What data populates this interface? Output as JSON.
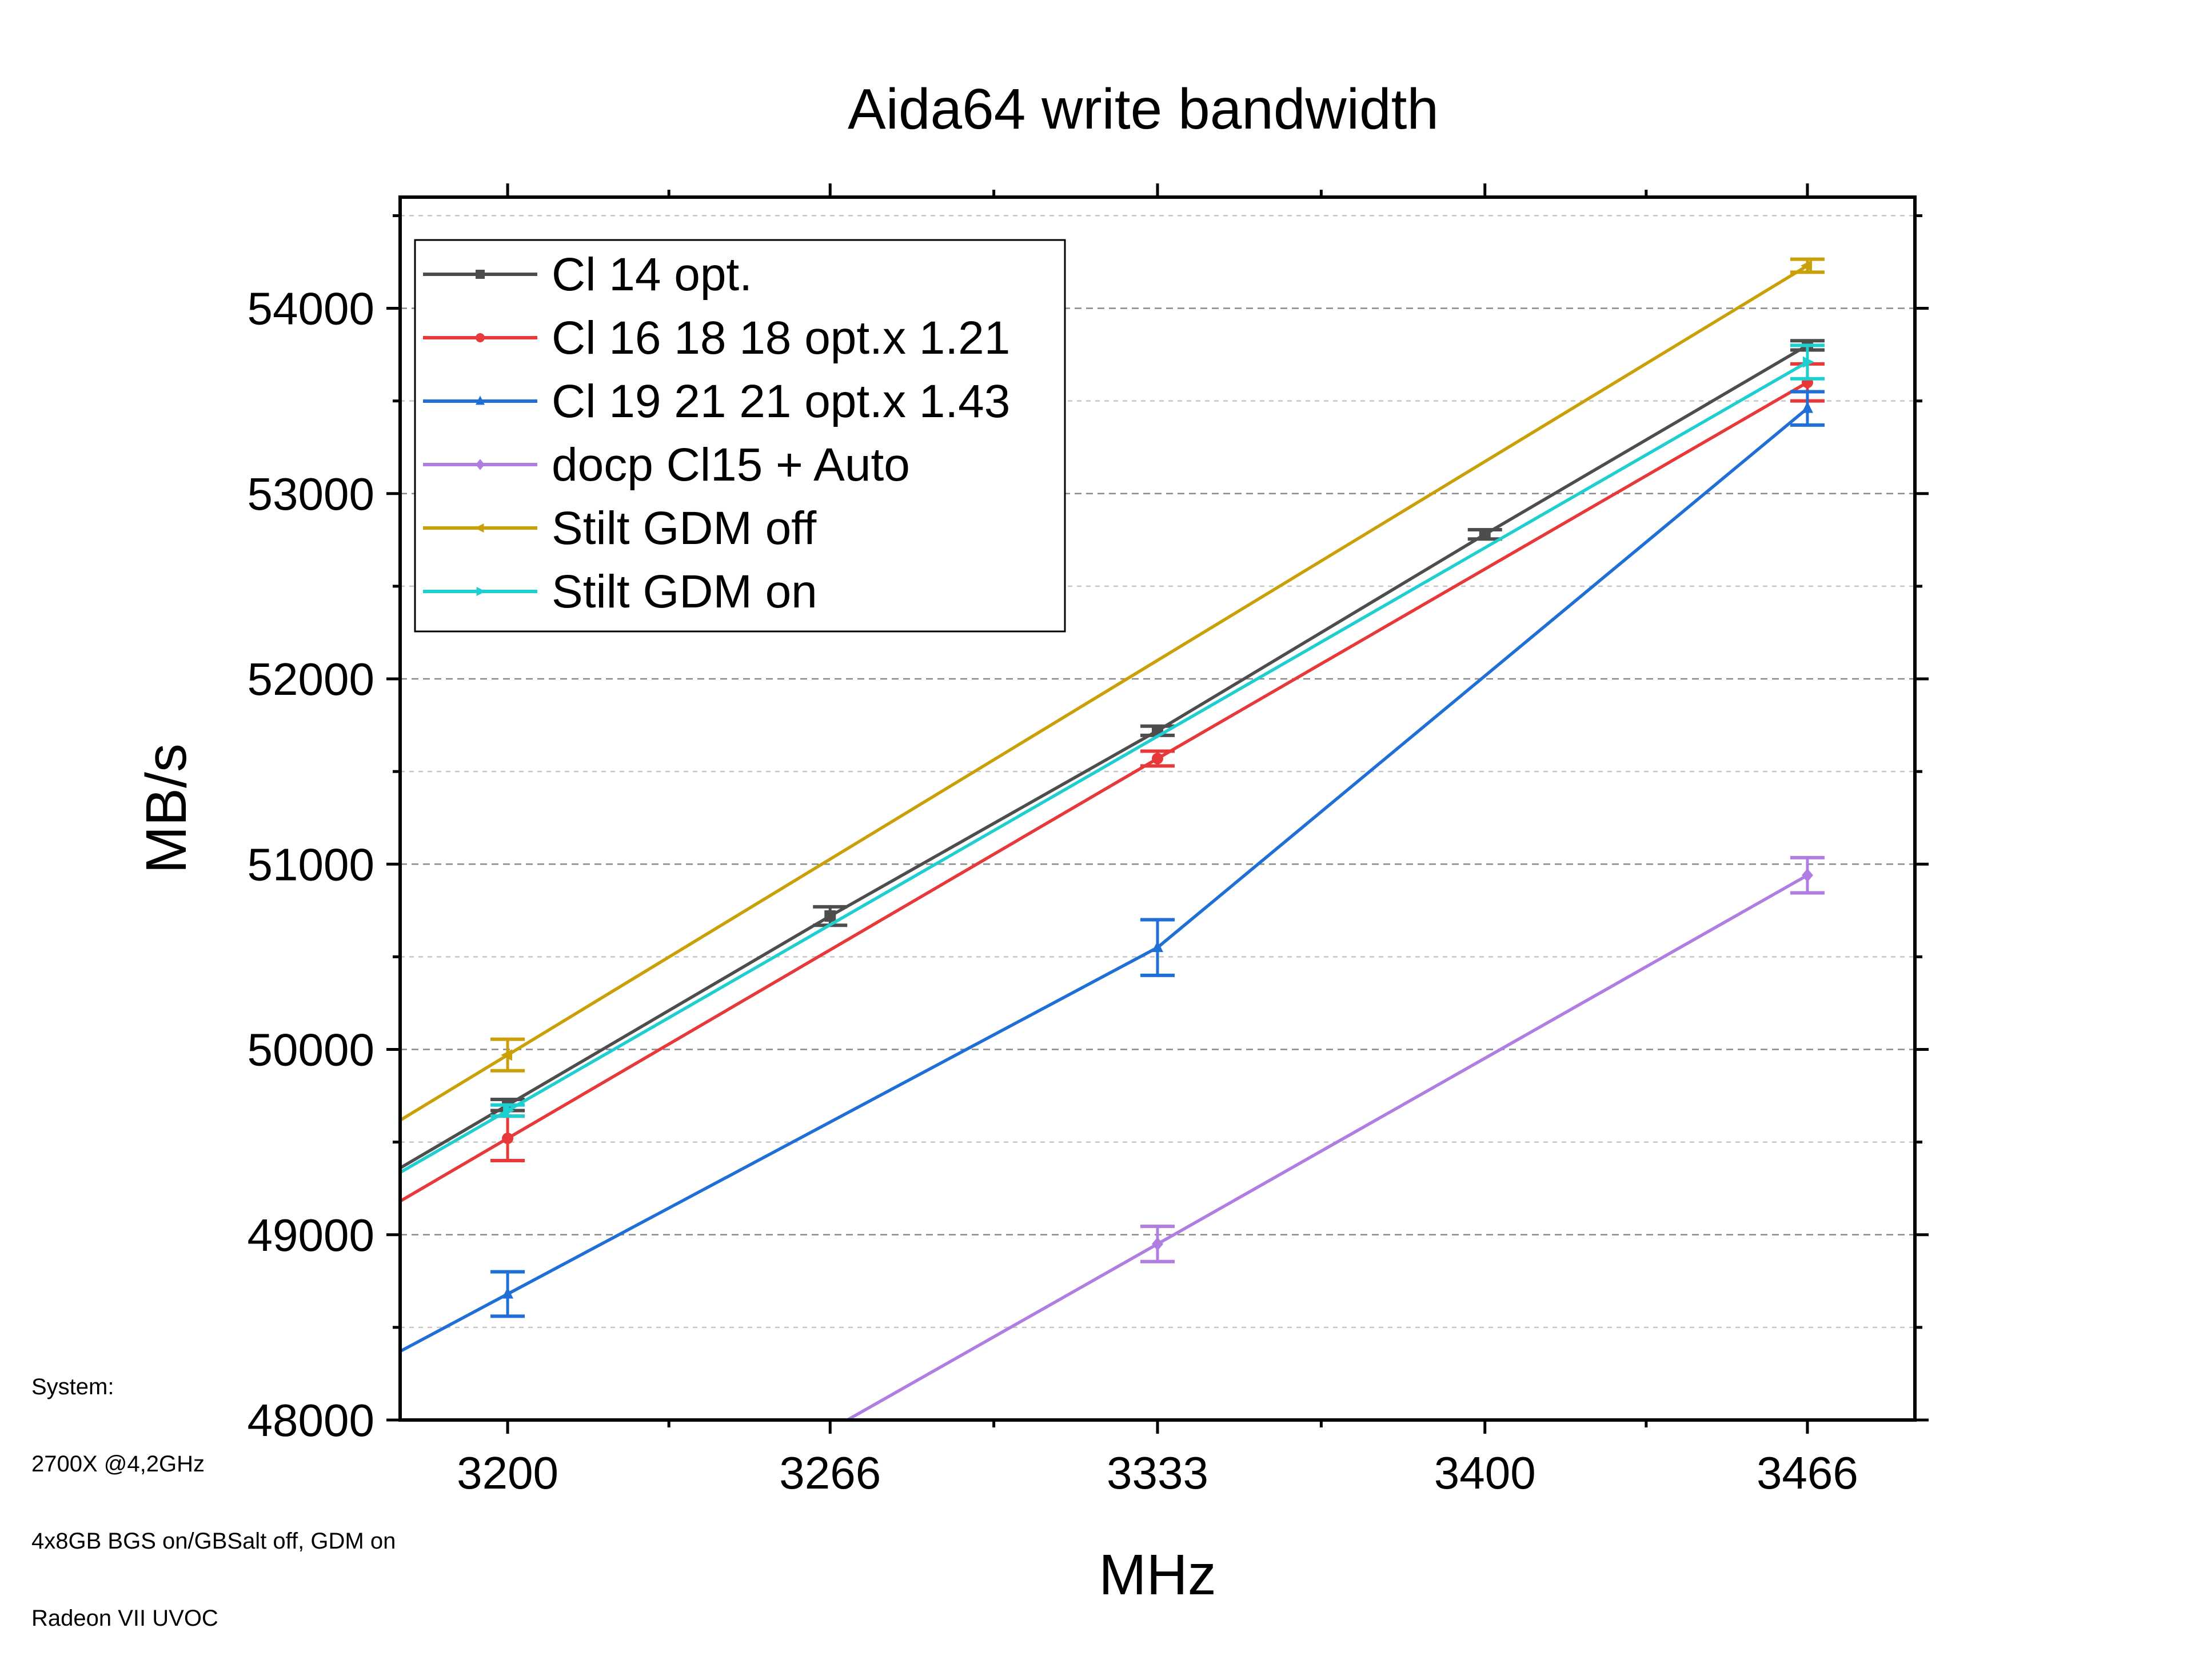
{
  "chart_data": {
    "type": "line",
    "title": "Aida64 write bandwidth",
    "xlabel": "MHz",
    "ylabel": "MB/s",
    "x_categories": [
      "3200",
      "3266",
      "3333",
      "3400",
      "3466"
    ],
    "x_values": [
      3200,
      3266,
      3333,
      3400,
      3466
    ],
    "xlim": [
      3178,
      3488
    ],
    "ylim": [
      48000,
      54600
    ],
    "y_ticks": [
      48000,
      49000,
      50000,
      51000,
      52000,
      53000,
      54000
    ],
    "y_tick_labels": [
      "48000",
      "49000",
      "50000",
      "51000",
      "52000",
      "53000",
      "54000"
    ],
    "grid": "horizontal dashed",
    "legend_position": "top-left",
    "series": [
      {
        "name": "Cl 14 opt.",
        "color": "#4d4d4d",
        "marker": "square",
        "points": [
          {
            "x": 3200,
            "y": 49700,
            "err": 30
          },
          {
            "x": 3266,
            "y": 50720,
            "err": 50
          },
          {
            "x": 3333,
            "y": 51720,
            "err": 25
          },
          {
            "x": 3400,
            "y": 52780,
            "err": 25
          },
          {
            "x": 3466,
            "y": 53800,
            "err": 25
          }
        ]
      },
      {
        "name": "Cl 16 18 18 opt.x 1.21",
        "color": "#e8393a",
        "marker": "circle",
        "points": [
          {
            "x": 3200,
            "y": 49520,
            "err": 120
          },
          {
            "x": 3333,
            "y": 51570,
            "err": 40
          },
          {
            "x": 3466,
            "y": 53600,
            "err": 100
          }
        ]
      },
      {
        "name": "Cl 19 21 21 opt.x 1.43",
        "color": "#1f6fd6",
        "marker": "triangle-up",
        "points": [
          {
            "x": 3200,
            "y": 48680,
            "err": 120
          },
          {
            "x": 3333,
            "y": 50550,
            "err": 150
          },
          {
            "x": 3466,
            "y": 53460,
            "err": 90
          }
        ]
      },
      {
        "name": "docp Cl15 + Auto",
        "color": "#b07de0",
        "marker": "diamond",
        "points": [
          {
            "x": 3333,
            "y": 48950,
            "err": 95
          },
          {
            "x": 3466,
            "y": 50940,
            "err": 95
          }
        ]
      },
      {
        "name": "Stilt GDM off",
        "color": "#c9a008",
        "marker": "triangle-left",
        "points": [
          {
            "x": 3200,
            "y": 49970,
            "err": 85
          },
          {
            "x": 3466,
            "y": 54230,
            "err": 35
          }
        ]
      },
      {
        "name": "Stilt GDM on",
        "color": "#1fcfcf",
        "marker": "triangle-right",
        "points": [
          {
            "x": 3200,
            "y": 49670,
            "err": 30
          },
          {
            "x": 3466,
            "y": 53710,
            "err": 90
          }
        ]
      }
    ]
  },
  "notes": [
    "System:",
    "2700X @4,2GHz",
    "4x8GB BGS on/GBSalt off, GDM on",
    "Radeon VII UVOC"
  ]
}
